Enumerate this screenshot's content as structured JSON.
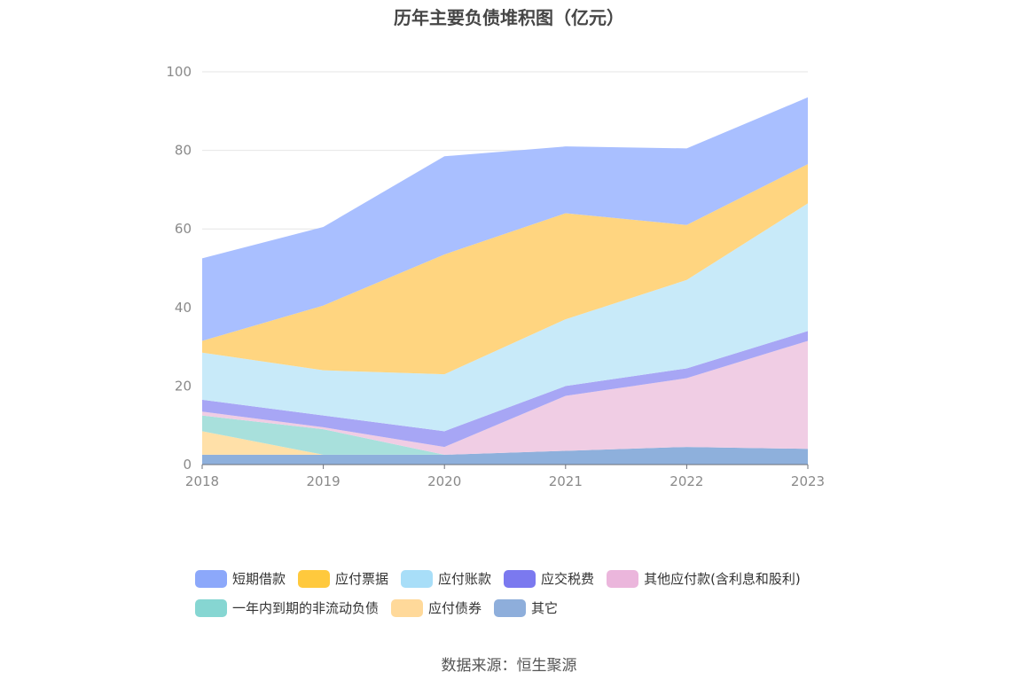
{
  "title": "历年主要负债堆积图（亿元）",
  "source": "数据来源：恒生聚源",
  "chart_data": {
    "type": "area",
    "stacked": true,
    "x": [
      "2018",
      "2019",
      "2020",
      "2021",
      "2022",
      "2023"
    ],
    "ylim": [
      0,
      100
    ],
    "yticks": [
      0,
      20,
      40,
      60,
      80,
      100
    ],
    "grid": true,
    "legend_position": "bottom",
    "series": [
      {
        "name": "其它",
        "color": "#8eb0dc",
        "values": [
          2.5,
          2.5,
          2.5,
          3.5,
          4.5,
          4.0
        ]
      },
      {
        "name": "应付债券",
        "color": "#ffe0a8",
        "values": [
          6.0,
          0.0,
          0.0,
          0.0,
          0.0,
          0.0
        ]
      },
      {
        "name": "一年内到期的非流动负债",
        "color": "#a8e0dc",
        "values": [
          4.0,
          6.5,
          0.0,
          0.0,
          0.0,
          0.0
        ]
      },
      {
        "name": "其他应付款(含利息和股利)",
        "color": "#f0cde4",
        "values": [
          1.0,
          0.5,
          2.0,
          14.0,
          17.5,
          27.5
        ]
      },
      {
        "name": "应交税费",
        "color": "#a7a6f5",
        "values": [
          3.0,
          3.0,
          4.0,
          2.5,
          2.5,
          2.5
        ]
      },
      {
        "name": "应付账款",
        "color": "#c8eaf9",
        "values": [
          12.0,
          11.5,
          14.5,
          17.0,
          22.5,
          32.5
        ]
      },
      {
        "name": "应付票据",
        "color": "#ffd580",
        "values": [
          3.0,
          16.5,
          30.5,
          27.0,
          14.0,
          10.0
        ]
      },
      {
        "name": "短期借款",
        "color": "#a9bfff",
        "values": [
          21.0,
          20.0,
          25.0,
          17.0,
          19.5,
          17.0
        ]
      }
    ]
  },
  "legend": {
    "row1": [
      {
        "label": "短期借款",
        "color": "#8ca8fa"
      },
      {
        "label": "应付票据",
        "color": "#ffc93d"
      },
      {
        "label": "应付账款",
        "color": "#a8def8"
      },
      {
        "label": "应交税费",
        "color": "#7b79ef"
      },
      {
        "label": "其他应付款(含利息和股利)",
        "color": "#ebb6dc"
      }
    ],
    "row2": [
      {
        "label": "一年内到期的非流动负债",
        "color": "#86d6d2"
      },
      {
        "label": "应付债券",
        "color": "#ffd99a"
      },
      {
        "label": "其它",
        "color": "#8eaedb"
      }
    ]
  }
}
